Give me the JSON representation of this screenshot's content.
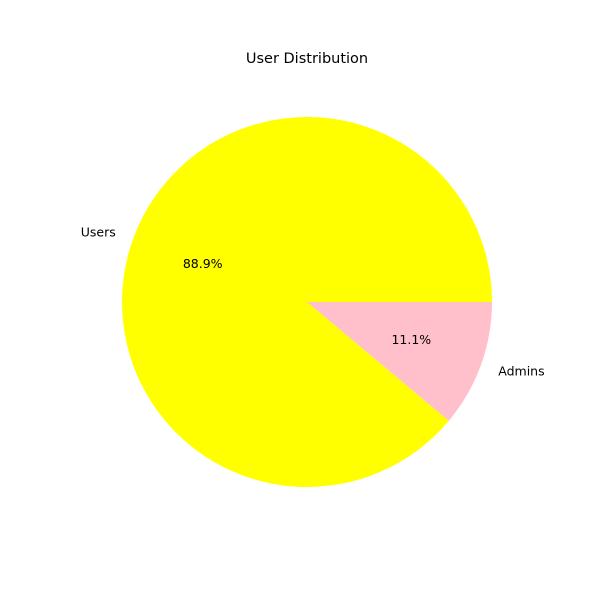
{
  "chart_data": {
    "type": "pie",
    "title": "User Distribution",
    "slices": [
      {
        "label": "Users",
        "value": 88.9,
        "pct_label": "88.9%",
        "color": "#ffff00"
      },
      {
        "label": "Admins",
        "value": 11.1,
        "pct_label": "11.1%",
        "color": "#ffc0cb"
      }
    ],
    "start_angle_deg": 0,
    "direction": "counterclockwise"
  }
}
